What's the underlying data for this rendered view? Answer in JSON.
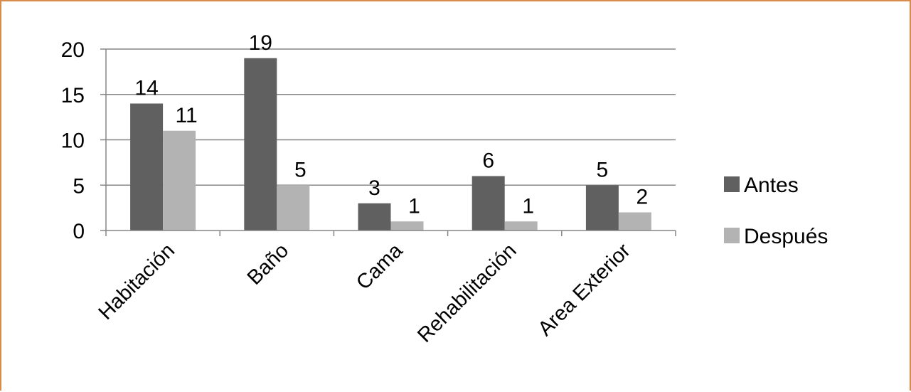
{
  "chart_data": {
    "type": "bar",
    "categories": [
      "Habitación",
      "Baño",
      "Cama",
      "Rehabilitación",
      "Area Exterior"
    ],
    "series": [
      {
        "name": "Antes",
        "values": [
          14,
          19,
          3,
          6,
          5
        ],
        "color": "#606060"
      },
      {
        "name": "Después",
        "values": [
          11,
          5,
          1,
          1,
          2
        ],
        "color": "#b3b3b3"
      }
    ],
    "yticks": [
      0,
      5,
      10,
      15,
      20
    ],
    "ylim": [
      0,
      20
    ],
    "grid": true,
    "legend_position": "right",
    "title": "",
    "xlabel": "",
    "ylabel": ""
  },
  "colors": {
    "border": "#d98c4a",
    "gridline": "#868686"
  }
}
